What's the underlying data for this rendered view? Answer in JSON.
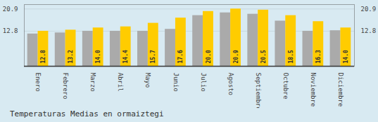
{
  "chart_data": {
    "type": "bar",
    "title": "Temperaturas Medias en ormaiztegi",
    "categories": [
      "Enero",
      "Febrero",
      "Marzo",
      "Abril",
      "Mayo",
      "Junio",
      "Julio",
      "Agosto",
      "Septiembre",
      "Octubre",
      "Noviembre",
      "Diciembre"
    ],
    "series": [
      {
        "color": "#AAAAAA",
        "values": [
          11.8,
          12.2,
          12.8,
          12.8,
          12.8,
          13.5,
          18.5,
          19.5,
          19.0,
          16.5,
          12.8,
          13.0
        ]
      },
      {
        "color": "#FFCC00",
        "values": [
          12.8,
          13.2,
          14.0,
          14.4,
          15.7,
          17.6,
          20.0,
          20.9,
          20.5,
          18.5,
          16.3,
          14.0
        ],
        "data_labels": true,
        "value_labels": [
          "12.8",
          "13.2",
          "14.0",
          "14.4",
          "15.7",
          "17.6",
          "20.0",
          "20.9",
          "20.5",
          "18.5",
          "16.3",
          "14.0"
        ]
      }
    ],
    "ylim": [
      0,
      22.5
    ],
    "yticks": [
      12.8,
      20.9
    ],
    "grid": true
  }
}
